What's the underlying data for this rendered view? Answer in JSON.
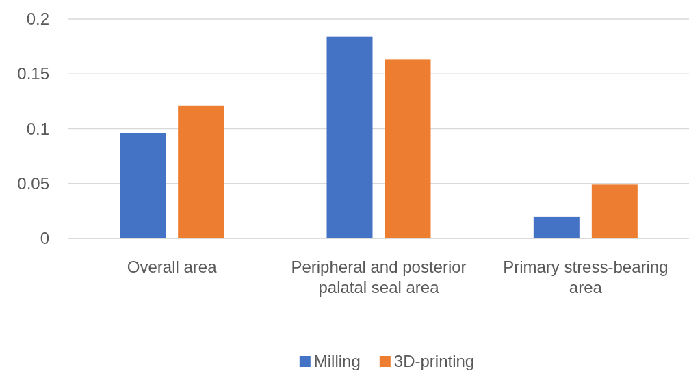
{
  "chart_data": {
    "type": "bar",
    "categories": [
      "Overall area",
      "Peripheral and posterior palatal seal area",
      "Primary stress-bearing area"
    ],
    "series": [
      {
        "name": "Milling",
        "color": "#4472c4",
        "values": [
          0.096,
          0.184,
          0.02
        ]
      },
      {
        "name": "3D-printing",
        "color": "#ed7d31",
        "values": [
          0.121,
          0.163,
          0.049
        ]
      }
    ],
    "ylim": [
      0,
      0.2
    ],
    "yticks": [
      0,
      0.05,
      0.1,
      0.15,
      0.2
    ],
    "grid": "y",
    "legend": "bottom"
  }
}
